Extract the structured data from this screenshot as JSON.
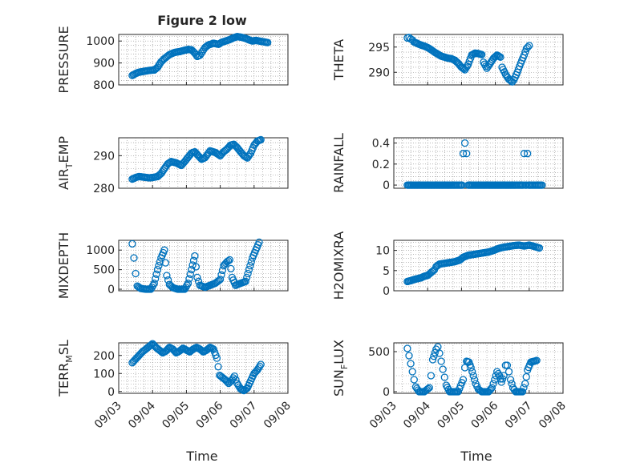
{
  "figure": {
    "title": "Figure 2 low",
    "xlabel": "Time"
  },
  "x_tick_labels": [
    "09/03",
    "09/04",
    "09/05",
    "09/06",
    "09/07",
    "09/08"
  ],
  "chart_data": [
    {
      "id": "pressure",
      "type": "scatter",
      "ylabel": "PRESSURE",
      "ylabel_sub": "",
      "ylabel_tail": "",
      "x": [
        "09/03",
        "09/08"
      ],
      "ylim": [
        800,
        1030
      ],
      "yticks": [
        800,
        900,
        1000
      ],
      "grid": true,
      "xlim": [
        3.0,
        8.0
      ],
      "series_points": [
        [
          3.4,
          843
        ],
        [
          3.5,
          852
        ],
        [
          3.6,
          858
        ],
        [
          3.75,
          862
        ],
        [
          3.9,
          866
        ],
        [
          4.05,
          868
        ],
        [
          4.15,
          880
        ],
        [
          4.25,
          905
        ],
        [
          4.35,
          920
        ],
        [
          4.5,
          938
        ],
        [
          4.65,
          948
        ],
        [
          4.8,
          952
        ],
        [
          4.95,
          958
        ],
        [
          5.05,
          962
        ],
        [
          5.15,
          960
        ],
        [
          5.25,
          945
        ],
        [
          5.32,
          930
        ],
        [
          5.4,
          935
        ],
        [
          5.55,
          970
        ],
        [
          5.65,
          982
        ],
        [
          5.8,
          990
        ],
        [
          5.95,
          985
        ],
        [
          6.05,
          995
        ],
        [
          6.2,
          1002
        ],
        [
          6.3,
          1008
        ],
        [
          6.4,
          1015
        ],
        [
          6.5,
          1020
        ],
        [
          6.6,
          1018
        ],
        [
          6.75,
          1012
        ],
        [
          6.85,
          1005
        ],
        [
          6.95,
          1000
        ],
        [
          7.05,
          1003
        ],
        [
          7.15,
          1000
        ],
        [
          7.3,
          996
        ],
        [
          7.4,
          993
        ]
      ]
    },
    {
      "id": "theta",
      "type": "scatter",
      "ylabel": "THETA",
      "ylabel_sub": "",
      "ylabel_tail": "",
      "ylim": [
        287.5,
        297.5
      ],
      "yticks": [
        290,
        295
      ],
      "grid": true,
      "xlim": [
        3.0,
        8.0
      ],
      "series_points": [
        [
          3.4,
          296.8
        ],
        [
          3.45,
          296.9
        ],
        [
          3.5,
          296.6
        ],
        [
          3.55,
          296.4
        ],
        [
          3.6,
          296.0
        ],
        [
          3.7,
          295.7
        ],
        [
          3.8,
          295.4
        ],
        [
          3.9,
          295.2
        ],
        [
          4.0,
          294.9
        ],
        [
          4.1,
          294.5
        ],
        [
          4.2,
          294.0
        ],
        [
          4.3,
          293.6
        ],
        [
          4.4,
          293.2
        ],
        [
          4.5,
          293.0
        ],
        [
          4.6,
          292.8
        ],
        [
          4.7,
          292.7
        ],
        [
          4.8,
          292.4
        ],
        [
          4.9,
          291.8
        ],
        [
          5.0,
          291.0
        ],
        [
          5.1,
          290.5
        ],
        [
          5.2,
          291.6
        ],
        [
          5.3,
          293.4
        ],
        [
          5.4,
          293.8
        ],
        [
          5.5,
          293.7
        ],
        [
          5.6,
          293.5
        ],
        [
          5.65,
          292.0
        ],
        [
          5.75,
          290.8
        ],
        [
          5.85,
          291.8
        ],
        [
          5.95,
          292.8
        ],
        [
          6.05,
          293.4
        ],
        [
          6.15,
          293.0
        ],
        [
          6.2,
          291.0
        ],
        [
          6.3,
          289.6
        ],
        [
          6.4,
          288.6
        ],
        [
          6.5,
          288.1
        ],
        [
          6.55,
          288.5
        ],
        [
          6.65,
          290.0
        ],
        [
          6.75,
          291.8
        ],
        [
          6.85,
          293.4
        ],
        [
          6.92,
          294.7
        ],
        [
          7.0,
          295.3
        ]
      ]
    },
    {
      "id": "air_temp",
      "type": "scatter",
      "ylabel": "AIR",
      "ylabel_sub": "T",
      "ylabel_tail": "EMP",
      "ylim": [
        280,
        295.5
      ],
      "yticks": [
        280,
        290
      ],
      "grid": true,
      "xlim": [
        3.0,
        8.0
      ],
      "series_points": [
        [
          3.4,
          282.8
        ],
        [
          3.5,
          283.3
        ],
        [
          3.6,
          283.6
        ],
        [
          3.75,
          283.4
        ],
        [
          3.9,
          283.2
        ],
        [
          4.0,
          283.3
        ],
        [
          4.15,
          283.6
        ],
        [
          4.25,
          284.5
        ],
        [
          4.35,
          286.0
        ],
        [
          4.45,
          287.5
        ],
        [
          4.55,
          288.2
        ],
        [
          4.7,
          287.8
        ],
        [
          4.85,
          287.0
        ],
        [
          4.95,
          288.2
        ],
        [
          5.05,
          289.5
        ],
        [
          5.15,
          290.8
        ],
        [
          5.25,
          291.2
        ],
        [
          5.35,
          290.0
        ],
        [
          5.45,
          288.9
        ],
        [
          5.55,
          289.4
        ],
        [
          5.7,
          291.5
        ],
        [
          5.85,
          291.0
        ],
        [
          6.0,
          290.0
        ],
        [
          6.1,
          291.2
        ],
        [
          6.2,
          292.0
        ],
        [
          6.3,
          293.2
        ],
        [
          6.4,
          293.5
        ],
        [
          6.5,
          292.5
        ],
        [
          6.6,
          291.2
        ],
        [
          6.7,
          290.0
        ],
        [
          6.8,
          289.3
        ],
        [
          6.9,
          290.8
        ],
        [
          7.0,
          293.2
        ],
        [
          7.1,
          294.5
        ],
        [
          7.2,
          294.9
        ]
      ]
    },
    {
      "id": "rainfall",
      "type": "scatter",
      "ylabel": "RAINFALL",
      "ylabel_sub": "",
      "ylabel_tail": "",
      "ylim": [
        -0.03,
        0.45
      ],
      "yticks": [
        0,
        0.2,
        0.4
      ],
      "grid": true,
      "xlim": [
        3.0,
        8.0
      ],
      "series_points": [
        [
          3.4,
          0
        ],
        [
          3.6,
          0
        ],
        [
          3.8,
          0
        ],
        [
          4.0,
          0
        ],
        [
          4.2,
          0
        ],
        [
          4.4,
          0
        ],
        [
          4.6,
          0
        ],
        [
          4.8,
          0
        ],
        [
          4.95,
          0
        ],
        [
          5.05,
          0.3
        ],
        [
          5.1,
          0.4
        ],
        [
          5.15,
          0.3
        ],
        [
          5.2,
          0
        ],
        [
          5.4,
          0
        ],
        [
          5.6,
          0
        ],
        [
          5.8,
          0
        ],
        [
          6.0,
          0
        ],
        [
          6.2,
          0
        ],
        [
          6.4,
          0
        ],
        [
          6.6,
          0
        ],
        [
          6.75,
          0
        ],
        [
          6.85,
          0.3
        ],
        [
          6.95,
          0.3
        ],
        [
          7.05,
          0
        ],
        [
          7.2,
          0
        ],
        [
          7.38,
          0
        ]
      ]
    },
    {
      "id": "mixdepth",
      "type": "scatter",
      "ylabel": "MIXDEPTH",
      "ylabel_sub": "",
      "ylabel_tail": "",
      "ylim": [
        -40,
        1250
      ],
      "yticks": [
        0,
        500,
        1000
      ],
      "grid": true,
      "xlim": [
        3.0,
        8.0
      ],
      "series_points": [
        [
          3.4,
          1160
        ],
        [
          3.45,
          800
        ],
        [
          3.5,
          400
        ],
        [
          3.55,
          80
        ],
        [
          3.65,
          20
        ],
        [
          3.8,
          0
        ],
        [
          3.95,
          0
        ],
        [
          4.05,
          150
        ],
        [
          4.15,
          500
        ],
        [
          4.25,
          800
        ],
        [
          4.35,
          1000
        ],
        [
          4.42,
          350
        ],
        [
          4.5,
          120
        ],
        [
          4.6,
          40
        ],
        [
          4.75,
          0
        ],
        [
          4.95,
          0
        ],
        [
          5.05,
          150
        ],
        [
          5.15,
          500
        ],
        [
          5.25,
          850
        ],
        [
          5.32,
          300
        ],
        [
          5.4,
          100
        ],
        [
          5.55,
          50
        ],
        [
          5.7,
          100
        ],
        [
          5.85,
          150
        ],
        [
          6.0,
          250
        ],
        [
          6.1,
          600
        ],
        [
          6.2,
          700
        ],
        [
          6.28,
          750
        ],
        [
          6.35,
          300
        ],
        [
          6.45,
          100
        ],
        [
          6.6,
          150
        ],
        [
          6.75,
          200
        ],
        [
          6.85,
          500
        ],
        [
          6.95,
          800
        ],
        [
          7.05,
          1000
        ],
        [
          7.15,
          1200
        ]
      ]
    },
    {
      "id": "h2omixra",
      "type": "scatter",
      "ylabel": "H2OMIXRA",
      "ylabel_sub": "",
      "ylabel_tail": "",
      "ylim": [
        0,
        12.5
      ],
      "yticks": [
        0,
        5,
        10
      ],
      "grid": true,
      "xlim": [
        3.0,
        8.0
      ],
      "series_points": [
        [
          3.4,
          2.3
        ],
        [
          3.5,
          2.5
        ],
        [
          3.6,
          2.8
        ],
        [
          3.7,
          3.0
        ],
        [
          3.8,
          3.2
        ],
        [
          3.9,
          3.6
        ],
        [
          4.0,
          3.8
        ],
        [
          4.1,
          4.5
        ],
        [
          4.2,
          5.2
        ],
        [
          4.25,
          6.0
        ],
        [
          4.35,
          6.6
        ],
        [
          4.5,
          6.8
        ],
        [
          4.65,
          7.0
        ],
        [
          4.8,
          7.2
        ],
        [
          4.95,
          7.6
        ],
        [
          5.05,
          8.3
        ],
        [
          5.2,
          8.8
        ],
        [
          5.35,
          9.0
        ],
        [
          5.5,
          9.2
        ],
        [
          5.65,
          9.4
        ],
        [
          5.8,
          9.6
        ],
        [
          5.95,
          10.0
        ],
        [
          6.1,
          10.5
        ],
        [
          6.25,
          10.8
        ],
        [
          6.4,
          11.0
        ],
        [
          6.55,
          11.2
        ],
        [
          6.7,
          11.3
        ],
        [
          6.85,
          11.1
        ],
        [
          7.0,
          11.3
        ],
        [
          7.15,
          11.0
        ],
        [
          7.3,
          10.6
        ]
      ]
    },
    {
      "id": "terr_msl",
      "type": "scatter",
      "ylabel": "TERR",
      "ylabel_sub": "M",
      "ylabel_tail": "SL",
      "ylim": [
        -10,
        270
      ],
      "yticks": [
        0,
        100,
        200
      ],
      "grid": true,
      "xlim": [
        3.0,
        8.0
      ],
      "series_points": [
        [
          3.4,
          160
        ],
        [
          3.5,
          180
        ],
        [
          3.6,
          200
        ],
        [
          3.7,
          220
        ],
        [
          3.8,
          235
        ],
        [
          3.9,
          250
        ],
        [
          4.0,
          265
        ],
        [
          4.1,
          245
        ],
        [
          4.2,
          230
        ],
        [
          4.3,
          215
        ],
        [
          4.4,
          225
        ],
        [
          4.5,
          245
        ],
        [
          4.6,
          235
        ],
        [
          4.7,
          215
        ],
        [
          4.8,
          225
        ],
        [
          4.9,
          240
        ],
        [
          5.0,
          230
        ],
        [
          5.1,
          220
        ],
        [
          5.2,
          235
        ],
        [
          5.3,
          245
        ],
        [
          5.4,
          235
        ],
        [
          5.5,
          220
        ],
        [
          5.6,
          230
        ],
        [
          5.7,
          245
        ],
        [
          5.8,
          235
        ],
        [
          5.9,
          185
        ],
        [
          5.98,
          90
        ],
        [
          6.05,
          80
        ],
        [
          6.15,
          65
        ],
        [
          6.25,
          45
        ],
        [
          6.35,
          65
        ],
        [
          6.42,
          85
        ],
        [
          6.5,
          45
        ],
        [
          6.6,
          15
        ],
        [
          6.7,
          5
        ],
        [
          6.8,
          20
        ],
        [
          6.9,
          60
        ],
        [
          7.0,
          100
        ],
        [
          7.1,
          120
        ],
        [
          7.2,
          150
        ]
      ]
    },
    {
      "id": "sun_flux",
      "type": "scatter",
      "ylabel": "SUN",
      "ylabel_sub": "F",
      "ylabel_tail": "LUX",
      "ylim": [
        -20,
        610
      ],
      "yticks": [
        0,
        500
      ],
      "grid": true,
      "xlim": [
        3.0,
        8.0
      ],
      "series_points": [
        [
          3.4,
          540
        ],
        [
          3.45,
          450
        ],
        [
          3.5,
          350
        ],
        [
          3.55,
          250
        ],
        [
          3.6,
          150
        ],
        [
          3.65,
          60
        ],
        [
          3.75,
          0
        ],
        [
          3.9,
          0
        ],
        [
          4.05,
          50
        ],
        [
          4.1,
          200
        ],
        [
          4.15,
          400
        ],
        [
          4.25,
          530
        ],
        [
          4.3,
          560
        ],
        [
          4.35,
          480
        ],
        [
          4.4,
          380
        ],
        [
          4.45,
          280
        ],
        [
          4.5,
          180
        ],
        [
          4.55,
          80
        ],
        [
          4.65,
          0
        ],
        [
          4.9,
          0
        ],
        [
          5.05,
          150
        ],
        [
          5.1,
          300
        ],
        [
          5.15,
          380
        ],
        [
          5.22,
          370
        ],
        [
          5.28,
          300
        ],
        [
          5.35,
          200
        ],
        [
          5.42,
          100
        ],
        [
          5.5,
          30
        ],
        [
          5.6,
          0
        ],
        [
          5.8,
          0
        ],
        [
          5.9,
          50
        ],
        [
          5.98,
          150
        ],
        [
          6.05,
          250
        ],
        [
          6.12,
          200
        ],
        [
          6.18,
          120
        ],
        [
          6.25,
          200
        ],
        [
          6.3,
          330
        ],
        [
          6.35,
          330
        ],
        [
          6.4,
          250
        ],
        [
          6.45,
          150
        ],
        [
          6.52,
          50
        ],
        [
          6.6,
          0
        ],
        [
          6.8,
          0
        ],
        [
          6.88,
          100
        ],
        [
          6.95,
          270
        ],
        [
          7.05,
          370
        ],
        [
          7.15,
          380
        ],
        [
          7.22,
          390
        ]
      ]
    }
  ]
}
